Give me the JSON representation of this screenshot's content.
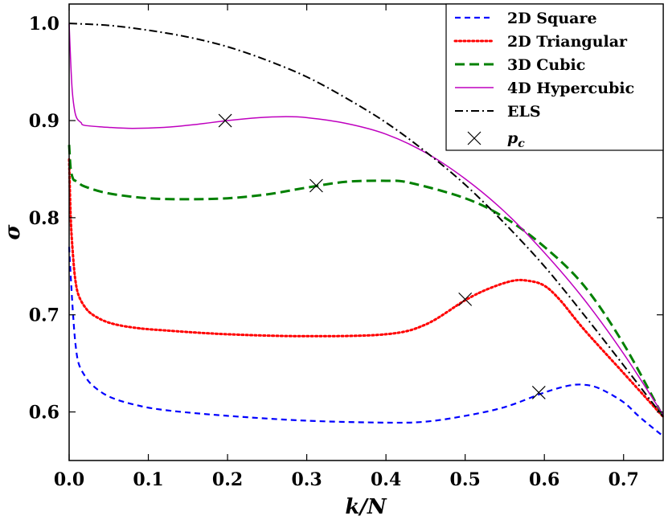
{
  "chart_data": {
    "type": "line",
    "title": "",
    "xlabel": "k/N",
    "ylabel": "σ",
    "xlim": [
      0.0,
      0.75
    ],
    "ylim": [
      0.55,
      1.02
    ],
    "x_ticks": [
      "0.0",
      "0.1",
      "0.2",
      "0.3",
      "0.4",
      "0.5",
      "0.6",
      "0.7"
    ],
    "y_ticks": [
      "0.6",
      "0.7",
      "0.8",
      "0.9",
      "1.0"
    ],
    "x_tick_values": [
      0.0,
      0.1,
      0.2,
      0.3,
      0.4,
      0.5,
      0.6,
      0.7
    ],
    "y_tick_values": [
      0.6,
      0.7,
      0.8,
      0.9,
      1.0
    ],
    "grid": false,
    "legend_position": "top-right",
    "series": [
      {
        "name": "2D Square",
        "color": "#0000ff",
        "style": "dashed",
        "x": [
          0.0,
          0.002,
          0.005,
          0.008,
          0.012,
          0.02,
          0.03,
          0.05,
          0.08,
          0.12,
          0.2,
          0.3,
          0.4,
          0.45,
          0.5,
          0.55,
          0.6,
          0.63,
          0.65,
          0.67,
          0.7,
          0.72,
          0.75
        ],
        "y": [
          0.77,
          0.74,
          0.7,
          0.67,
          0.65,
          0.637,
          0.627,
          0.616,
          0.608,
          0.602,
          0.596,
          0.591,
          0.589,
          0.59,
          0.596,
          0.605,
          0.62,
          0.627,
          0.628,
          0.624,
          0.61,
          0.595,
          0.575
        ]
      },
      {
        "name": "2D Triangular",
        "color": "#ff0000",
        "style": "dotted",
        "x": [
          0.0,
          0.002,
          0.005,
          0.008,
          0.012,
          0.02,
          0.03,
          0.05,
          0.08,
          0.12,
          0.2,
          0.3,
          0.4,
          0.45,
          0.5,
          0.53,
          0.56,
          0.58,
          0.6,
          0.62,
          0.65,
          0.7,
          0.75
        ],
        "y": [
          0.86,
          0.8,
          0.76,
          0.735,
          0.72,
          0.708,
          0.7,
          0.692,
          0.687,
          0.684,
          0.68,
          0.678,
          0.68,
          0.69,
          0.715,
          0.727,
          0.735,
          0.735,
          0.73,
          0.715,
          0.685,
          0.64,
          0.595
        ]
      },
      {
        "name": "3D Cubic",
        "color": "#008000",
        "style": "dashed-long",
        "x": [
          0.0,
          0.002,
          0.005,
          0.008,
          0.012,
          0.02,
          0.05,
          0.1,
          0.15,
          0.2,
          0.25,
          0.3,
          0.35,
          0.4,
          0.43,
          0.5,
          0.55,
          0.6,
          0.65,
          0.7,
          0.75
        ],
        "y": [
          0.875,
          0.85,
          0.84,
          0.838,
          0.836,
          0.832,
          0.825,
          0.82,
          0.819,
          0.82,
          0.824,
          0.831,
          0.837,
          0.838,
          0.836,
          0.82,
          0.8,
          0.77,
          0.73,
          0.67,
          0.595
        ]
      },
      {
        "name": "4D Hypercubic",
        "color": "#bf00bf",
        "style": "solid",
        "x": [
          0.0,
          0.002,
          0.004,
          0.007,
          0.01,
          0.015,
          0.02,
          0.05,
          0.08,
          0.12,
          0.16,
          0.2,
          0.24,
          0.27,
          0.3,
          0.35,
          0.4,
          0.45,
          0.5,
          0.55,
          0.6,
          0.65,
          0.7,
          0.75
        ],
        "y": [
          1.0,
          0.96,
          0.93,
          0.91,
          0.902,
          0.898,
          0.895,
          0.893,
          0.892,
          0.893,
          0.896,
          0.9,
          0.903,
          0.904,
          0.903,
          0.897,
          0.886,
          0.867,
          0.84,
          0.806,
          0.764,
          0.716,
          0.66,
          0.597
        ]
      },
      {
        "name": "ELS",
        "color": "#000000",
        "style": "dash-dot",
        "x": [
          0.0,
          0.05,
          0.1,
          0.15,
          0.2,
          0.25,
          0.3,
          0.35,
          0.4,
          0.45,
          0.5,
          0.55,
          0.6,
          0.65,
          0.7,
          0.75
        ],
        "y": [
          1.0,
          0.998,
          0.993,
          0.986,
          0.976,
          0.962,
          0.945,
          0.923,
          0.898,
          0.868,
          0.834,
          0.794,
          0.75,
          0.7,
          0.648,
          0.595
        ]
      }
    ],
    "markers": {
      "name": "p_c",
      "legend_label_base": "p",
      "legend_label_subscript": "c",
      "symbol": "x",
      "color": "#000000",
      "points": [
        {
          "x": 0.197,
          "y": 0.9
        },
        {
          "x": 0.312,
          "y": 0.833
        },
        {
          "x": 0.5,
          "y": 0.716
        },
        {
          "x": 0.593,
          "y": 0.62
        }
      ]
    }
  }
}
